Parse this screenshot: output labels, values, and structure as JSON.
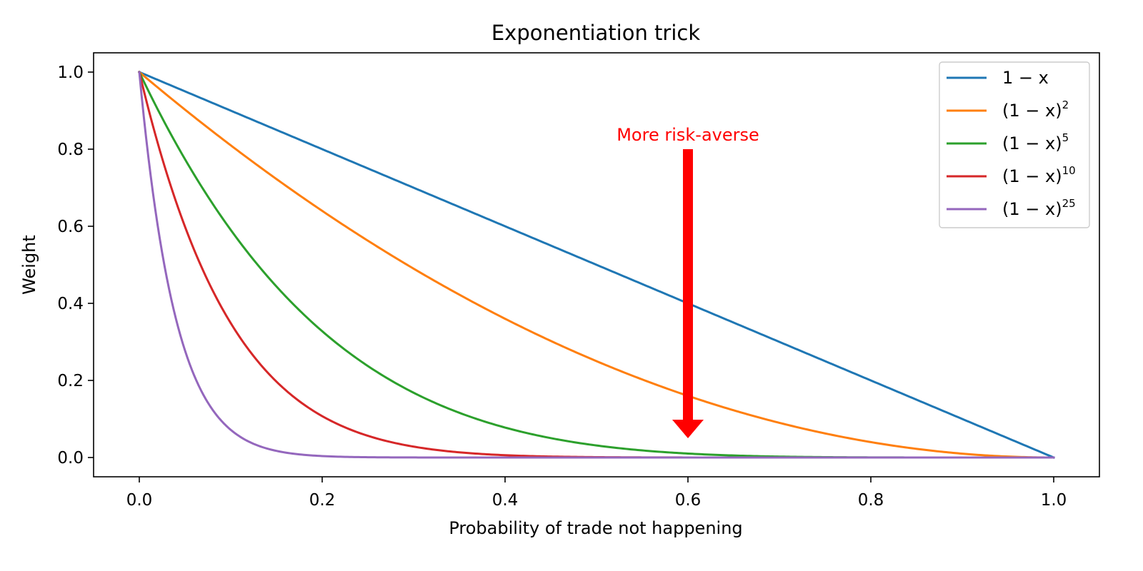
{
  "chart_data": {
    "type": "line",
    "title": "Exponentiation trick",
    "xlabel": "Probability of trade not happening",
    "ylabel": "Weight",
    "xlim": [
      -0.05,
      1.05
    ],
    "ylim": [
      -0.05,
      1.05
    ],
    "xticks": [
      0.0,
      0.2,
      0.4,
      0.6,
      0.8,
      1.0
    ],
    "xtick_labels": [
      "0.0",
      "0.2",
      "0.4",
      "0.6",
      "0.8",
      "1.0"
    ],
    "yticks": [
      0.0,
      0.2,
      0.4,
      0.6,
      0.8,
      1.0
    ],
    "ytick_labels": [
      "0.0",
      "0.2",
      "0.4",
      "0.6",
      "0.8",
      "1.0"
    ],
    "grid": false,
    "legend_position": "top-right",
    "series": [
      {
        "name": "1 − x",
        "legend_base": "1 − x",
        "legend_sup": "",
        "exponent": 1,
        "color": "#1f77b4"
      },
      {
        "name": "(1 − x)^2",
        "legend_base": "(1 − x)",
        "legend_sup": "2",
        "exponent": 2,
        "color": "#ff7f0e"
      },
      {
        "name": "(1 − x)^5",
        "legend_base": "(1 − x)",
        "legend_sup": "5",
        "exponent": 5,
        "color": "#2ca02c"
      },
      {
        "name": "(1 − x)^10",
        "legend_base": "(1 − x)",
        "legend_sup": "10",
        "exponent": 10,
        "color": "#d62728"
      },
      {
        "name": "(1 − x)^25",
        "legend_base": "(1 − x)",
        "legend_sup": "25",
        "exponent": 25,
        "color": "#9467bd"
      }
    ],
    "annotation": {
      "text": "More risk-averse",
      "color": "#ff0000",
      "arrow_x": 0.6,
      "arrow_from_y": 0.8,
      "arrow_to_y": 0.05
    }
  }
}
